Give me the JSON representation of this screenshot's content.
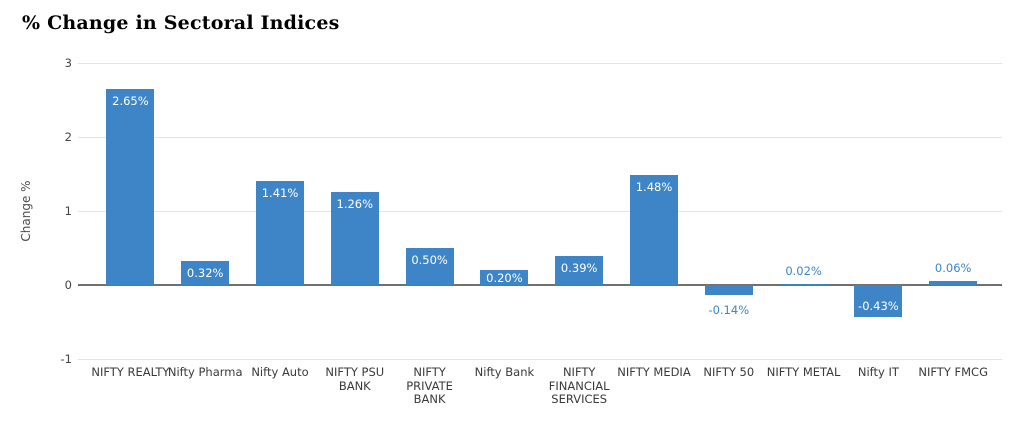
{
  "chart_data": {
    "type": "bar",
    "title": "% Change in Sectoral Indices",
    "xlabel": "",
    "ylabel": "Change %",
    "categories": [
      "NIFTY REALTY",
      "Nifty Pharma",
      "Nifty Auto",
      "NIFTY PSU BANK",
      "NIFTY PRIVATE BANK",
      "Nifty Bank",
      "NIFTY FINANCIAL SERVICES",
      "NIFTY MEDIA",
      "NIFTY 50",
      "NIFTY METAL",
      "Nifty IT",
      "NIFTY FMCG"
    ],
    "values": [
      2.65,
      0.32,
      1.41,
      1.26,
      0.5,
      0.2,
      0.39,
      1.48,
      -0.14,
      0.02,
      -0.43,
      0.06
    ],
    "value_labels": [
      "2.65%",
      "0.32%",
      "1.41%",
      "1.26%",
      "0.50%",
      "0.20%",
      "0.39%",
      "1.48%",
      "-0.14%",
      "0.02%",
      "-0.43%",
      "0.06%"
    ],
    "ylim": [
      -1,
      3
    ],
    "yticks": [
      3,
      2,
      1,
      0,
      -1
    ],
    "grid": true,
    "legend": "none",
    "colors": {
      "bar": "#3d85c6",
      "annotation_inside": "#ffffff",
      "annotation_outside": "#3d85c6",
      "gridline": "#e4e4e4",
      "baseline": "#707070",
      "axis_text": "#444444",
      "title_text": "#000000"
    }
  }
}
